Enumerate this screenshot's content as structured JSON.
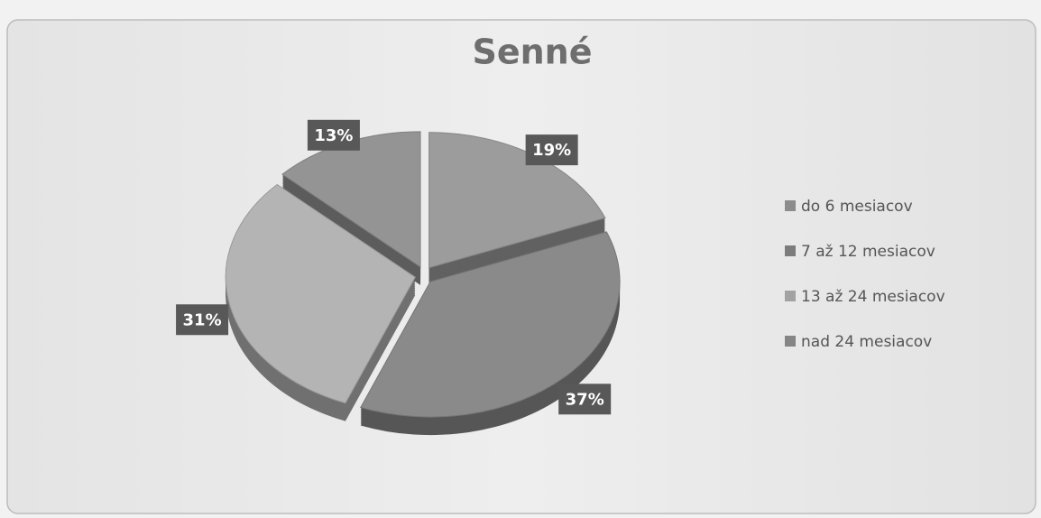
{
  "chart_data": {
    "type": "pie",
    "title": "Senné",
    "categories": [
      "do 6 mesiacov",
      "7 až 12 mesiacov",
      "13 až 24 mesiacov",
      "nad 24 mesiacov"
    ],
    "values": [
      19,
      37,
      31,
      13
    ],
    "value_labels": [
      "19%",
      "37%",
      "31%",
      "13%"
    ],
    "colors": [
      "#9c9c9c",
      "#8a8a8a",
      "#b4b4b4",
      "#949494"
    ],
    "legend": "right"
  }
}
